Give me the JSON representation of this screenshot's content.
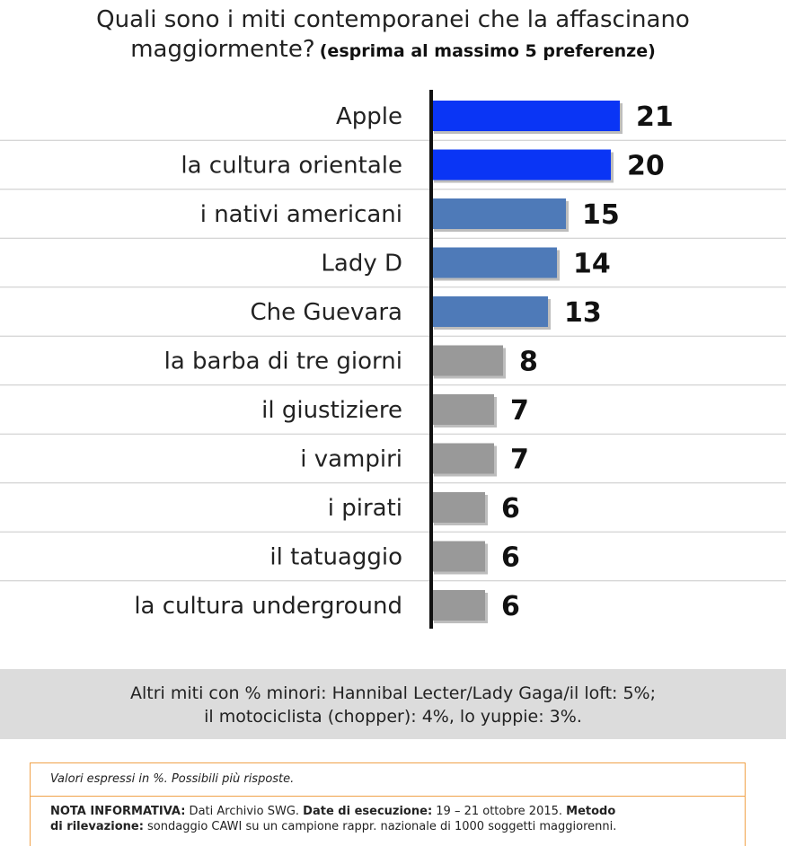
{
  "title": {
    "question_line1": "Quali sono i miti contemporanei che la affascinano",
    "question_line2": "maggiormente?",
    "subtitle": "(esprima al massimo 5 preferenze)"
  },
  "chart_data": {
    "type": "bar",
    "orientation": "horizontal",
    "title": "Quali sono i miti contemporanei che la affascinano maggiormente? (esprima al massimo 5 preferenze)",
    "categories": [
      "Apple",
      "la cultura orientale",
      "i nativi americani",
      "Lady D",
      "Che Guevara",
      "la barba di tre giorni",
      "il giustiziere",
      "i vampiri",
      "i pirati",
      "il tatuaggio",
      "la cultura underground"
    ],
    "values": [
      21,
      20,
      15,
      14,
      13,
      8,
      7,
      7,
      6,
      6,
      6
    ],
    "bar_colors": [
      "#0a35f5",
      "#0a35f5",
      "#4e7ab8",
      "#4e7ab8",
      "#4e7ab8",
      "#999999",
      "#999999",
      "#999999",
      "#999999",
      "#999999",
      "#999999"
    ],
    "xlim": [
      0,
      25
    ],
    "grid": false,
    "row_separators": true
  },
  "other_myths": {
    "line1": "Altri miti con % minori: Hannibal Lecter/Lady Gaga/il loft: 5%;",
    "line2": "il motociclista (chopper): 4%, lo yuppie: 3%."
  },
  "info": {
    "values_note": "Valori espressi in %. Possibili più risposte.",
    "nota_label": "NOTA INFORMATIVA:",
    "nota_text": " Dati Archivio SWG. ",
    "date_label": "Date di esecuzione:",
    "date_text": " 19 – 21 ottobre 2015. ",
    "method_label_1": "Metodo",
    "method_label_2": "di rilevazione:",
    "method_text": " sondaggio CAWI su un campione rappr. nazionale di 1000 soggetti maggiorenni."
  }
}
